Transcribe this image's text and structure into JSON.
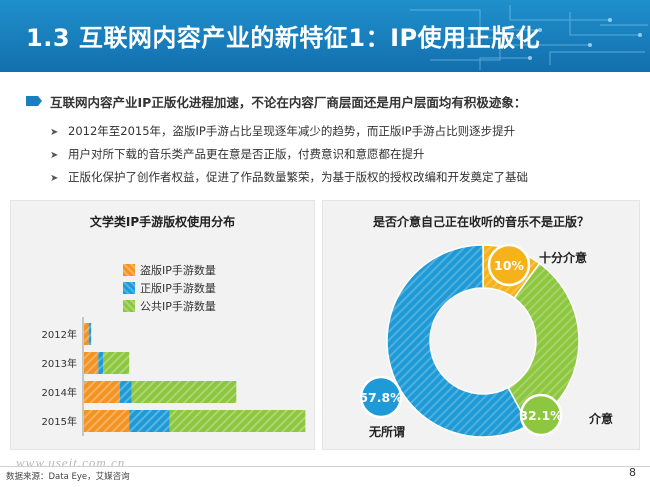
{
  "slide": {
    "title": "1.3 互联网内容产业的新特征1：IP使用正版化",
    "lead": "互联网内容产业IP正版化进程加速，不论在内容厂商层面还是用户层面均有积极迹象：",
    "bullets": [
      "2012年至2015年，盗版IP手游占比呈现逐年减少的趋势，而正版IP手游占比则逐步提升",
      "用户对所下载的音乐类产品更在意是否正版，付费意识和意愿都在提升",
      "正版化保护了创作者权益，促进了作品数量繁荣，为基于版权的授权改编和开发奠定了基础"
    ],
    "source": "数据来源：Data Eye，艾媒咨询",
    "watermark": "www.useit.com.cn",
    "page_number": "8",
    "accent_color": "#1a7fc1"
  },
  "chart_data": [
    {
      "type": "bar",
      "orientation": "horizontal",
      "stacked": true,
      "title": "文学类IP手游版权使用分布",
      "categories": [
        "2012年",
        "2013年",
        "2014年",
        "2015年"
      ],
      "series": [
        {
          "name": "盗版IP手游数量",
          "color": "#f39322",
          "values": [
            2,
            6,
            15,
            19
          ]
        },
        {
          "name": "正版IP手游数量",
          "color": "#1e9ad6",
          "values": [
            1,
            2,
            5,
            17
          ]
        },
        {
          "name": "公共IP手游数量",
          "color": "#8dc63f",
          "values": [
            0,
            11,
            44,
            57
          ]
        }
      ],
      "legend_position": "top",
      "xlabel": "",
      "ylabel": "",
      "grid": false
    },
    {
      "type": "pie",
      "donut": true,
      "title": "是否介意自己正在收听的音乐不是正版？",
      "slices": [
        {
          "label": "十分介意",
          "value": 10,
          "value_label": "10%",
          "color": "#f5b21a"
        },
        {
          "label": "介意",
          "value": 32.1,
          "value_label": "32.1%",
          "color": "#8dc63f"
        },
        {
          "label": "无所谓",
          "value": 57.8,
          "value_label": "57.8%",
          "color": "#1e9ad6"
        }
      ]
    }
  ]
}
